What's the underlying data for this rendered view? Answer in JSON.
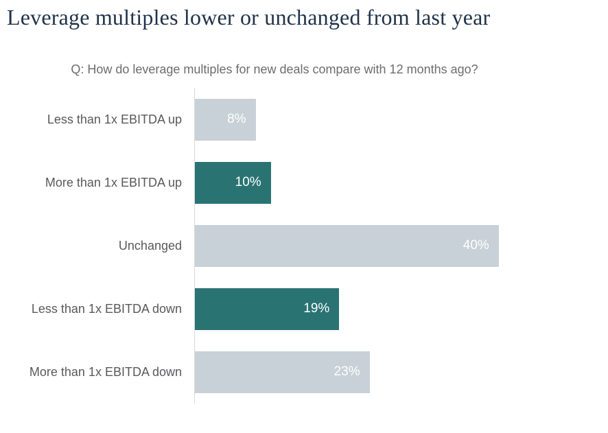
{
  "page": {
    "title": "Leverage multiples lower or unchanged from last year",
    "subtitle": "Q: How do leverage multiples for new deals compare with 12 months ago?"
  },
  "colors": {
    "title_text": "#20334a",
    "subtitle_text": "#6b6c6e",
    "category_label_text": "#58595b",
    "bar_light": "#c8d1d7",
    "bar_teal": "#2a7373",
    "value_label_text": "#ffffff",
    "axis_line": "#d9d9d9",
    "background": "#ffffff"
  },
  "chart_data": {
    "type": "bar",
    "orientation": "horizontal",
    "title": "Leverage multiples lower or unchanged from last year",
    "subtitle": "Q: How do leverage multiples for new deals compare with 12 months ago?",
    "categories": [
      "Less than 1x EBITDA up",
      "More than 1x EBITDA up",
      "Unchanged",
      "Less than 1x EBITDA down",
      "More than 1x EBITDA down"
    ],
    "values": [
      8,
      10,
      40,
      19,
      23
    ],
    "value_labels": [
      "8%",
      "10%",
      "40%",
      "19%",
      "23%"
    ],
    "bar_colors": [
      "#c8d1d7",
      "#2a7373",
      "#c8d1d7",
      "#2a7373",
      "#c8d1d7"
    ],
    "unit": "%",
    "xlim": [
      0,
      53
    ],
    "grid": false,
    "legend": false,
    "value_label_position": "inside-end"
  }
}
